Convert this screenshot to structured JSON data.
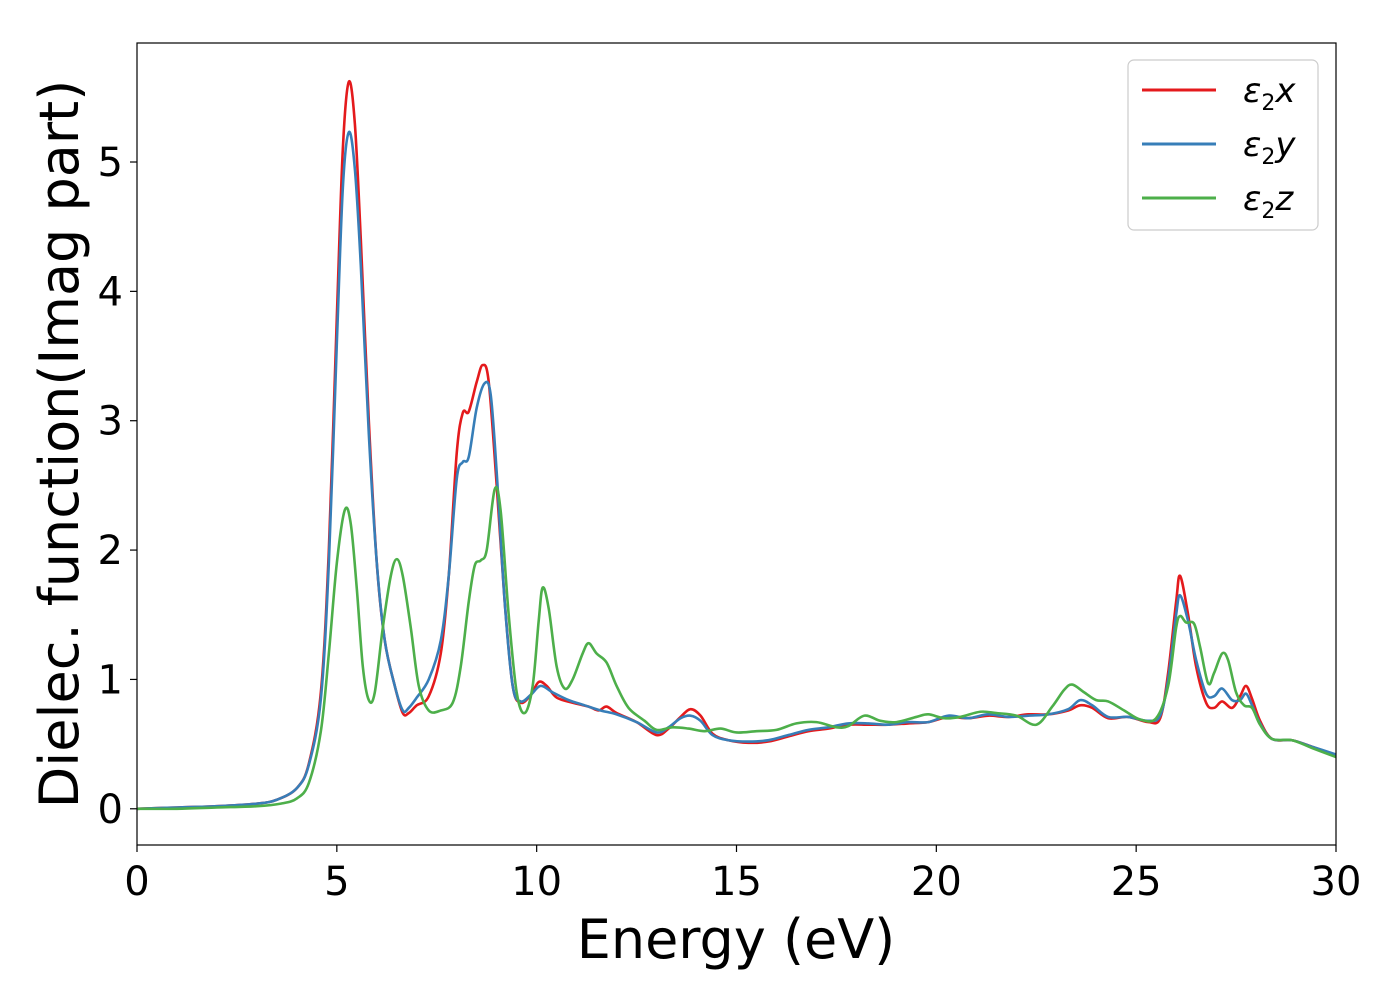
{
  "chart_data": {
    "type": "line",
    "xlabel": "Energy (eV)",
    "ylabel": "Dielec. function(Imag part)",
    "xlim": [
      0,
      30
    ],
    "ylim": [
      -0.28,
      5.92
    ],
    "xticks": [
      0,
      5,
      10,
      15,
      20,
      25,
      30
    ],
    "yticks": [
      0,
      1,
      2,
      3,
      4,
      5
    ],
    "grid": false,
    "legend_position": "top-right",
    "series": [
      {
        "name": "ε2x",
        "legend": {
          "base": "ε",
          "sub": "2",
          "suffix": "x"
        },
        "color": "#e41a1c",
        "points": [
          [
            0,
            0
          ],
          [
            1,
            0.01
          ],
          [
            2,
            0.02
          ],
          [
            3,
            0.04
          ],
          [
            3.5,
            0.07
          ],
          [
            4,
            0.16
          ],
          [
            4.3,
            0.35
          ],
          [
            4.6,
            0.9
          ],
          [
            4.8,
            2.0
          ],
          [
            5.0,
            3.8
          ],
          [
            5.15,
            5.1
          ],
          [
            5.3,
            5.62
          ],
          [
            5.45,
            5.3
          ],
          [
            5.6,
            4.4
          ],
          [
            5.8,
            3.0
          ],
          [
            6.0,
            1.9
          ],
          [
            6.2,
            1.3
          ],
          [
            6.45,
            0.95
          ],
          [
            6.65,
            0.74
          ],
          [
            6.8,
            0.74
          ],
          [
            7.0,
            0.8
          ],
          [
            7.3,
            0.87
          ],
          [
            7.6,
            1.2
          ],
          [
            7.8,
            1.8
          ],
          [
            8.0,
            2.75
          ],
          [
            8.15,
            3.06
          ],
          [
            8.3,
            3.07
          ],
          [
            8.5,
            3.3
          ],
          [
            8.65,
            3.43
          ],
          [
            8.8,
            3.3
          ],
          [
            9.0,
            2.5
          ],
          [
            9.2,
            1.6
          ],
          [
            9.4,
            0.95
          ],
          [
            9.6,
            0.82
          ],
          [
            9.85,
            0.88
          ],
          [
            10.05,
            0.98
          ],
          [
            10.25,
            0.95
          ],
          [
            10.5,
            0.86
          ],
          [
            10.9,
            0.82
          ],
          [
            11.3,
            0.79
          ],
          [
            11.55,
            0.76
          ],
          [
            11.75,
            0.79
          ],
          [
            12.0,
            0.74
          ],
          [
            12.5,
            0.67
          ],
          [
            13.0,
            0.57
          ],
          [
            13.3,
            0.62
          ],
          [
            13.6,
            0.71
          ],
          [
            13.85,
            0.77
          ],
          [
            14.1,
            0.72
          ],
          [
            14.4,
            0.58
          ],
          [
            14.8,
            0.53
          ],
          [
            15.3,
            0.51
          ],
          [
            15.8,
            0.52
          ],
          [
            16.3,
            0.56
          ],
          [
            16.8,
            0.6
          ],
          [
            17.3,
            0.62
          ],
          [
            17.8,
            0.65
          ],
          [
            18.3,
            0.65
          ],
          [
            18.8,
            0.65
          ],
          [
            19.3,
            0.66
          ],
          [
            19.8,
            0.67
          ],
          [
            20.3,
            0.71
          ],
          [
            20.8,
            0.7
          ],
          [
            21.3,
            0.72
          ],
          [
            21.8,
            0.71
          ],
          [
            22.3,
            0.73
          ],
          [
            22.8,
            0.73
          ],
          [
            23.3,
            0.76
          ],
          [
            23.6,
            0.8
          ],
          [
            23.9,
            0.78
          ],
          [
            24.3,
            0.7
          ],
          [
            24.8,
            0.71
          ],
          [
            25.3,
            0.67
          ],
          [
            25.6,
            0.7
          ],
          [
            25.8,
            1.05
          ],
          [
            26.0,
            1.6
          ],
          [
            26.1,
            1.8
          ],
          [
            26.3,
            1.5
          ],
          [
            26.5,
            1.1
          ],
          [
            26.75,
            0.82
          ],
          [
            26.95,
            0.78
          ],
          [
            27.15,
            0.83
          ],
          [
            27.4,
            0.78
          ],
          [
            27.6,
            0.87
          ],
          [
            27.75,
            0.95
          ],
          [
            27.9,
            0.85
          ],
          [
            28.1,
            0.68
          ],
          [
            28.4,
            0.54
          ],
          [
            28.9,
            0.53
          ],
          [
            29.4,
            0.48
          ],
          [
            30,
            0.41
          ]
        ]
      },
      {
        "name": "ε2y",
        "legend": {
          "base": "ε",
          "sub": "2",
          "suffix": "y"
        },
        "color": "#377eb8",
        "points": [
          [
            0,
            0
          ],
          [
            1,
            0.01
          ],
          [
            2,
            0.02
          ],
          [
            3,
            0.04
          ],
          [
            3.5,
            0.07
          ],
          [
            4,
            0.16
          ],
          [
            4.3,
            0.34
          ],
          [
            4.6,
            0.85
          ],
          [
            4.8,
            1.9
          ],
          [
            5.0,
            3.6
          ],
          [
            5.15,
            4.8
          ],
          [
            5.3,
            5.23
          ],
          [
            5.45,
            4.95
          ],
          [
            5.6,
            4.2
          ],
          [
            5.8,
            2.9
          ],
          [
            6.0,
            1.9
          ],
          [
            6.2,
            1.3
          ],
          [
            6.45,
            0.95
          ],
          [
            6.65,
            0.76
          ],
          [
            6.8,
            0.78
          ],
          [
            7.0,
            0.86
          ],
          [
            7.3,
            1.0
          ],
          [
            7.6,
            1.3
          ],
          [
            7.8,
            1.8
          ],
          [
            8.0,
            2.55
          ],
          [
            8.15,
            2.68
          ],
          [
            8.3,
            2.72
          ],
          [
            8.5,
            3.1
          ],
          [
            8.7,
            3.29
          ],
          [
            8.85,
            3.2
          ],
          [
            9.0,
            2.6
          ],
          [
            9.2,
            1.6
          ],
          [
            9.4,
            0.95
          ],
          [
            9.6,
            0.83
          ],
          [
            9.85,
            0.88
          ],
          [
            10.1,
            0.95
          ],
          [
            10.4,
            0.9
          ],
          [
            10.8,
            0.84
          ],
          [
            11.2,
            0.8
          ],
          [
            11.6,
            0.76
          ],
          [
            12.0,
            0.73
          ],
          [
            12.5,
            0.67
          ],
          [
            13.0,
            0.59
          ],
          [
            13.3,
            0.63
          ],
          [
            13.6,
            0.7
          ],
          [
            13.85,
            0.72
          ],
          [
            14.1,
            0.68
          ],
          [
            14.4,
            0.57
          ],
          [
            14.8,
            0.53
          ],
          [
            15.3,
            0.52
          ],
          [
            15.8,
            0.53
          ],
          [
            16.3,
            0.57
          ],
          [
            16.8,
            0.61
          ],
          [
            17.3,
            0.63
          ],
          [
            17.8,
            0.66
          ],
          [
            18.3,
            0.66
          ],
          [
            18.8,
            0.65
          ],
          [
            19.3,
            0.67
          ],
          [
            19.8,
            0.67
          ],
          [
            20.3,
            0.72
          ],
          [
            20.8,
            0.7
          ],
          [
            21.3,
            0.73
          ],
          [
            21.8,
            0.71
          ],
          [
            22.3,
            0.72
          ],
          [
            22.8,
            0.73
          ],
          [
            23.3,
            0.77
          ],
          [
            23.6,
            0.84
          ],
          [
            23.9,
            0.8
          ],
          [
            24.3,
            0.71
          ],
          [
            24.8,
            0.71
          ],
          [
            25.3,
            0.68
          ],
          [
            25.6,
            0.72
          ],
          [
            25.8,
            1.0
          ],
          [
            26.0,
            1.5
          ],
          [
            26.1,
            1.65
          ],
          [
            26.3,
            1.45
          ],
          [
            26.5,
            1.15
          ],
          [
            26.75,
            0.89
          ],
          [
            26.95,
            0.87
          ],
          [
            27.15,
            0.93
          ],
          [
            27.4,
            0.84
          ],
          [
            27.6,
            0.84
          ],
          [
            27.75,
            0.89
          ],
          [
            27.9,
            0.8
          ],
          [
            28.1,
            0.66
          ],
          [
            28.4,
            0.54
          ],
          [
            28.9,
            0.53
          ],
          [
            29.4,
            0.48
          ],
          [
            30,
            0.42
          ]
        ]
      },
      {
        "name": "ε2z",
        "legend": {
          "base": "ε",
          "sub": "2",
          "suffix": "z"
        },
        "color": "#4daf4a",
        "points": [
          [
            0,
            0
          ],
          [
            1,
            0.0
          ],
          [
            2,
            0.01
          ],
          [
            3,
            0.02
          ],
          [
            3.6,
            0.04
          ],
          [
            4.0,
            0.08
          ],
          [
            4.3,
            0.2
          ],
          [
            4.6,
            0.6
          ],
          [
            4.8,
            1.2
          ],
          [
            5.0,
            1.9
          ],
          [
            5.2,
            2.31
          ],
          [
            5.35,
            2.2
          ],
          [
            5.5,
            1.7
          ],
          [
            5.65,
            1.1
          ],
          [
            5.8,
            0.84
          ],
          [
            5.95,
            0.9
          ],
          [
            6.15,
            1.4
          ],
          [
            6.35,
            1.8
          ],
          [
            6.5,
            1.93
          ],
          [
            6.65,
            1.8
          ],
          [
            6.85,
            1.4
          ],
          [
            7.05,
            0.95
          ],
          [
            7.3,
            0.76
          ],
          [
            7.6,
            0.76
          ],
          [
            7.9,
            0.82
          ],
          [
            8.1,
            1.1
          ],
          [
            8.3,
            1.6
          ],
          [
            8.45,
            1.88
          ],
          [
            8.6,
            1.92
          ],
          [
            8.75,
            2.0
          ],
          [
            8.95,
            2.47
          ],
          [
            9.1,
            2.3
          ],
          [
            9.3,
            1.5
          ],
          [
            9.5,
            0.9
          ],
          [
            9.7,
            0.74
          ],
          [
            9.9,
            0.95
          ],
          [
            10.05,
            1.45
          ],
          [
            10.15,
            1.71
          ],
          [
            10.3,
            1.55
          ],
          [
            10.5,
            1.1
          ],
          [
            10.7,
            0.93
          ],
          [
            10.9,
            1.0
          ],
          [
            11.15,
            1.2
          ],
          [
            11.3,
            1.28
          ],
          [
            11.5,
            1.2
          ],
          [
            11.75,
            1.13
          ],
          [
            12.0,
            0.95
          ],
          [
            12.3,
            0.78
          ],
          [
            12.7,
            0.68
          ],
          [
            13.0,
            0.61
          ],
          [
            13.4,
            0.63
          ],
          [
            13.8,
            0.62
          ],
          [
            14.2,
            0.6
          ],
          [
            14.6,
            0.62
          ],
          [
            15.0,
            0.59
          ],
          [
            15.5,
            0.6
          ],
          [
            16.0,
            0.61
          ],
          [
            16.5,
            0.66
          ],
          [
            17.0,
            0.67
          ],
          [
            17.5,
            0.63
          ],
          [
            17.8,
            0.64
          ],
          [
            18.2,
            0.72
          ],
          [
            18.6,
            0.68
          ],
          [
            19.0,
            0.67
          ],
          [
            19.5,
            0.71
          ],
          [
            19.8,
            0.73
          ],
          [
            20.2,
            0.7
          ],
          [
            20.6,
            0.71
          ],
          [
            21.1,
            0.75
          ],
          [
            21.5,
            0.74
          ],
          [
            22.0,
            0.72
          ],
          [
            22.5,
            0.65
          ],
          [
            22.9,
            0.79
          ],
          [
            23.2,
            0.92
          ],
          [
            23.4,
            0.96
          ],
          [
            23.7,
            0.9
          ],
          [
            24.0,
            0.84
          ],
          [
            24.3,
            0.83
          ],
          [
            24.7,
            0.76
          ],
          [
            25.1,
            0.69
          ],
          [
            25.5,
            0.7
          ],
          [
            25.8,
            0.95
          ],
          [
            26.0,
            1.4
          ],
          [
            26.1,
            1.49
          ],
          [
            26.25,
            1.44
          ],
          [
            26.45,
            1.43
          ],
          [
            26.6,
            1.25
          ],
          [
            26.8,
            0.97
          ],
          [
            26.95,
            1.05
          ],
          [
            27.15,
            1.2
          ],
          [
            27.3,
            1.15
          ],
          [
            27.5,
            0.9
          ],
          [
            27.7,
            0.8
          ],
          [
            27.9,
            0.78
          ],
          [
            28.1,
            0.65
          ],
          [
            28.4,
            0.54
          ],
          [
            28.9,
            0.53
          ],
          [
            29.4,
            0.47
          ],
          [
            30,
            0.4
          ]
        ]
      }
    ]
  }
}
